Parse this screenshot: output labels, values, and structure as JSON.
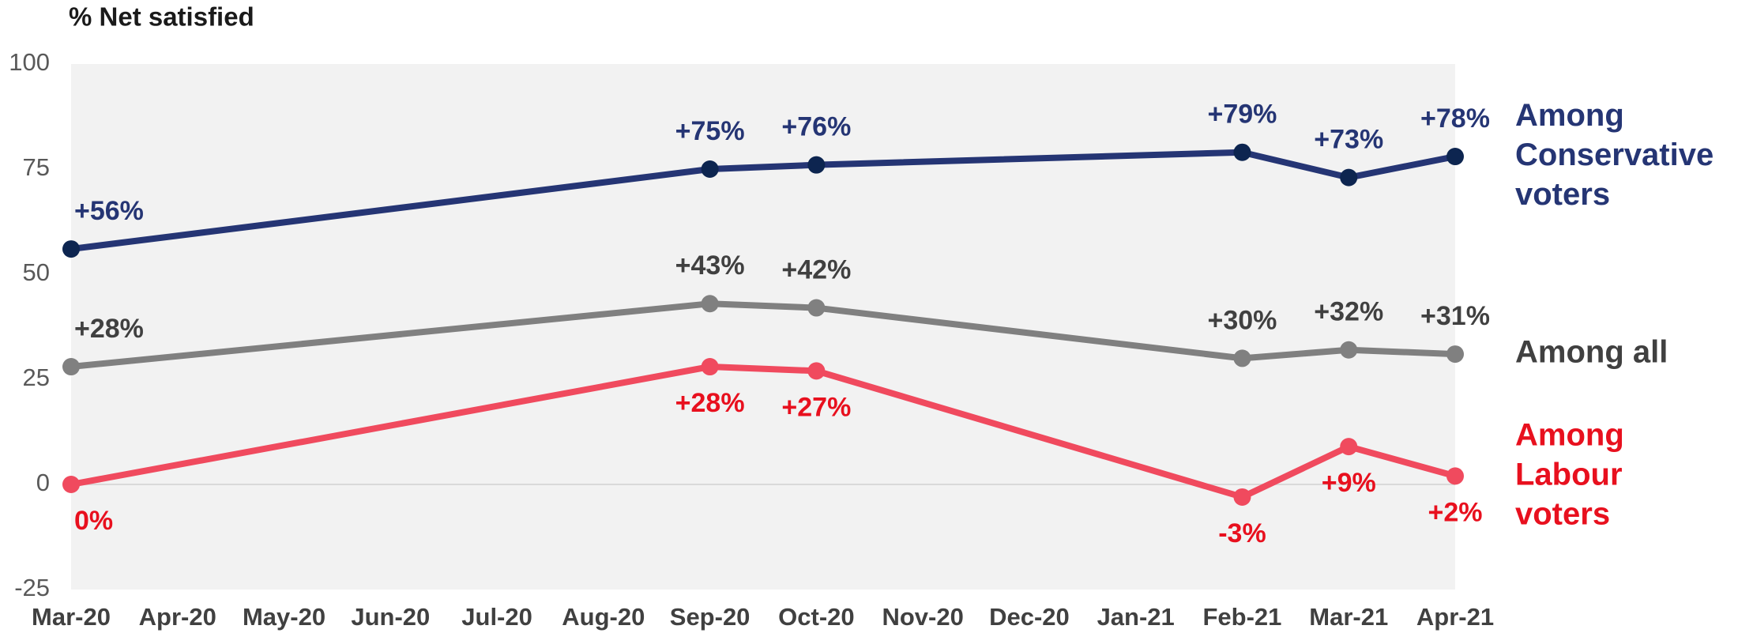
{
  "chart_data": {
    "type": "line",
    "title": "% Net satisfied",
    "categories": [
      "Mar-20",
      "Apr-20",
      "May-20",
      "Jun-20",
      "Jul-20",
      "Aug-20",
      "Sep-20",
      "Oct-20",
      "Nov-20",
      "Dec-20",
      "Jan-21",
      "Feb-21",
      "Mar-21",
      "Apr-21"
    ],
    "ylim": [
      -25,
      100
    ],
    "yticks": [
      -25,
      0,
      25,
      50,
      75,
      100
    ],
    "series": [
      {
        "name": "Among Conservative voters",
        "color": "#253574",
        "marker_color": "#0d2550",
        "label_color": "#253574",
        "x": [
          "Mar-20",
          "Sep-20",
          "Oct-20",
          "Feb-21",
          "Mar-21",
          "Apr-21"
        ],
        "values": [
          56,
          75,
          76,
          79,
          73,
          78
        ],
        "value_labels": [
          "+56%",
          "+75%",
          "+76%",
          "+79%",
          "+73%",
          "+78%"
        ]
      },
      {
        "name": "Among all",
        "color": "#808080",
        "marker_color": "#808080",
        "label_color": "#404040",
        "x": [
          "Mar-20",
          "Sep-20",
          "Oct-20",
          "Feb-21",
          "Mar-21",
          "Apr-21"
        ],
        "values": [
          28,
          43,
          42,
          30,
          32,
          31
        ],
        "value_labels": [
          "+28%",
          "+43%",
          "+42%",
          "+30%",
          "+32%",
          "+31%"
        ]
      },
      {
        "name": "Among Labour voters",
        "color": "#f04a5e",
        "marker_color": "#f04a5e",
        "label_color": "#e8101e",
        "x": [
          "Mar-20",
          "Sep-20",
          "Oct-20",
          "Feb-21",
          "Mar-21",
          "Apr-21"
        ],
        "values": [
          0,
          28,
          27,
          -3,
          9,
          2
        ],
        "value_labels": [
          "0%",
          "+28%",
          "+27%",
          "-3%",
          "+9%",
          "+2%"
        ]
      }
    ]
  }
}
